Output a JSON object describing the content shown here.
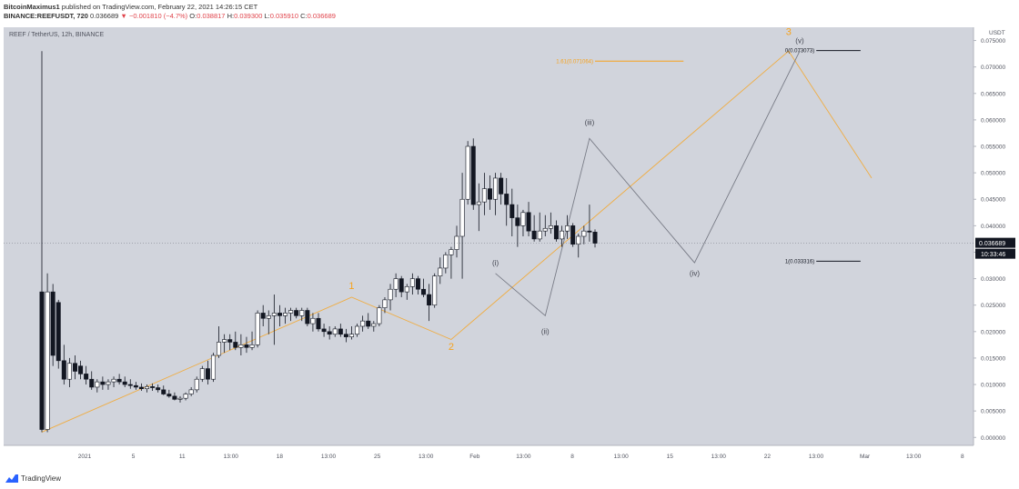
{
  "header": {
    "author": "BitcoinMaximus1",
    "published": "published on TradingView.com, February 22, 2021 14:26:15 CET",
    "symbol": "BINANCE:REEFUSDT, 720",
    "last": "0.036689",
    "change": "−0.001810 (−4.7%)",
    "o_label": "O:",
    "o": "0.038817",
    "h_label": "H:",
    "h": "0.039300",
    "l_label": "L:",
    "l": "0.035910",
    "c_label": "C:",
    "c": "0.036689"
  },
  "chart_data": {
    "type": "candlestick",
    "title": "REEF / TetherUS, 12h, BINANCE",
    "y_unit": "USDT",
    "ylim": [
      -0.0015,
      0.0775
    ],
    "y_ticks": [
      "0.075000",
      "0.070000",
      "0.065000",
      "0.060000",
      "0.055000",
      "0.050000",
      "0.045000",
      "0.040000",
      "0.035000",
      "0.030000",
      "0.025000",
      "0.020000",
      "0.015000",
      "0.010000",
      "0.005000",
      "0.000000"
    ],
    "x_tick_labels": [
      "2021",
      "5",
      "11",
      "13:00",
      "18",
      "13:00",
      "25",
      "13:00",
      "Feb",
      "13:00",
      "8",
      "13:00",
      "15",
      "13:00",
      "22",
      "13:00",
      "Mar",
      "13:00",
      "8"
    ],
    "candles": [
      [
        0.0275,
        0.073,
        0.001,
        0.0015
      ],
      [
        0.0015,
        0.031,
        0.001,
        0.0275
      ],
      [
        0.0275,
        0.029,
        0.0135,
        0.0155
      ],
      [
        0.0255,
        0.026,
        0.013,
        0.0145
      ],
      [
        0.0145,
        0.0175,
        0.01,
        0.011
      ],
      [
        0.011,
        0.015,
        0.0095,
        0.014
      ],
      [
        0.014,
        0.0155,
        0.011,
        0.0125
      ],
      [
        0.0135,
        0.0145,
        0.011,
        0.012
      ],
      [
        0.012,
        0.0135,
        0.01,
        0.011
      ],
      [
        0.011,
        0.0125,
        0.009,
        0.0095
      ],
      [
        0.0095,
        0.011,
        0.0085,
        0.0105
      ],
      [
        0.0105,
        0.0115,
        0.009,
        0.01
      ],
      [
        0.01,
        0.011,
        0.009,
        0.0105
      ],
      [
        0.0105,
        0.0115,
        0.0095,
        0.011
      ],
      [
        0.011,
        0.012,
        0.01,
        0.0105
      ],
      [
        0.0105,
        0.0115,
        0.0095,
        0.01
      ],
      [
        0.01,
        0.011,
        0.0092,
        0.0098
      ],
      [
        0.0098,
        0.0105,
        0.009,
        0.0095
      ],
      [
        0.0095,
        0.0102,
        0.0088,
        0.0092
      ],
      [
        0.0092,
        0.01,
        0.0085,
        0.0096
      ],
      [
        0.0096,
        0.0102,
        0.0088,
        0.0094
      ],
      [
        0.0094,
        0.01,
        0.0085,
        0.009
      ],
      [
        0.009,
        0.0098,
        0.008,
        0.0082
      ],
      [
        0.0082,
        0.009,
        0.0075,
        0.0078
      ],
      [
        0.0078,
        0.0085,
        0.007,
        0.0072
      ],
      [
        0.0072,
        0.0078,
        0.0066,
        0.0074
      ],
      [
        0.0074,
        0.0085,
        0.007,
        0.0082
      ],
      [
        0.0082,
        0.0095,
        0.0078,
        0.009
      ],
      [
        0.009,
        0.0115,
        0.0085,
        0.011
      ],
      [
        0.011,
        0.0135,
        0.0105,
        0.013
      ],
      [
        0.013,
        0.0145,
        0.01,
        0.011
      ],
      [
        0.011,
        0.016,
        0.0105,
        0.0155
      ],
      [
        0.0155,
        0.021,
        0.015,
        0.018
      ],
      [
        0.018,
        0.0195,
        0.016,
        0.0185
      ],
      [
        0.0185,
        0.0195,
        0.0165,
        0.018
      ],
      [
        0.018,
        0.02,
        0.0165,
        0.017
      ],
      [
        0.017,
        0.0195,
        0.0155,
        0.0175
      ],
      [
        0.0175,
        0.019,
        0.016,
        0.017
      ],
      [
        0.017,
        0.02,
        0.0165,
        0.0175
      ],
      [
        0.0175,
        0.024,
        0.017,
        0.0235
      ],
      [
        0.0235,
        0.025,
        0.021,
        0.0225
      ],
      [
        0.0225,
        0.024,
        0.0195,
        0.023
      ],
      [
        0.023,
        0.027,
        0.0175,
        0.0235
      ],
      [
        0.0235,
        0.025,
        0.021,
        0.023
      ],
      [
        0.023,
        0.0245,
        0.0215,
        0.0235
      ],
      [
        0.0235,
        0.0245,
        0.022,
        0.024
      ],
      [
        0.024,
        0.0245,
        0.0225,
        0.023
      ],
      [
        0.023,
        0.0245,
        0.022,
        0.024
      ],
      [
        0.024,
        0.0245,
        0.021,
        0.0215
      ],
      [
        0.0215,
        0.0235,
        0.02,
        0.0225
      ],
      [
        0.0225,
        0.0235,
        0.02,
        0.0205
      ],
      [
        0.0205,
        0.0215,
        0.019,
        0.02
      ],
      [
        0.02,
        0.021,
        0.0185,
        0.0195
      ],
      [
        0.0195,
        0.021,
        0.019,
        0.0205
      ],
      [
        0.0205,
        0.0215,
        0.019,
        0.0195
      ],
      [
        0.0195,
        0.0205,
        0.018,
        0.019
      ],
      [
        0.019,
        0.021,
        0.0185,
        0.0195
      ],
      [
        0.0195,
        0.0215,
        0.019,
        0.021
      ],
      [
        0.021,
        0.023,
        0.02,
        0.022
      ],
      [
        0.022,
        0.0235,
        0.0205,
        0.021
      ],
      [
        0.021,
        0.022,
        0.02,
        0.0215
      ],
      [
        0.0215,
        0.025,
        0.021,
        0.0245
      ],
      [
        0.0245,
        0.0265,
        0.0235,
        0.026
      ],
      [
        0.026,
        0.029,
        0.024,
        0.028
      ],
      [
        0.028,
        0.031,
        0.0265,
        0.03
      ],
      [
        0.03,
        0.0305,
        0.0265,
        0.0275
      ],
      [
        0.0275,
        0.029,
        0.026,
        0.0285
      ],
      [
        0.0285,
        0.031,
        0.027,
        0.03
      ],
      [
        0.03,
        0.0305,
        0.027,
        0.028
      ],
      [
        0.028,
        0.03,
        0.0265,
        0.027
      ],
      [
        0.027,
        0.029,
        0.022,
        0.025
      ],
      [
        0.025,
        0.031,
        0.0245,
        0.0305
      ],
      [
        0.0305,
        0.034,
        0.029,
        0.032
      ],
      [
        0.032,
        0.035,
        0.031,
        0.0345
      ],
      [
        0.0345,
        0.036,
        0.03,
        0.0355
      ],
      [
        0.0355,
        0.04,
        0.034,
        0.038
      ],
      [
        0.038,
        0.05,
        0.03,
        0.045
      ],
      [
        0.045,
        0.056,
        0.044,
        0.055
      ],
      [
        0.055,
        0.0565,
        0.043,
        0.044
      ],
      [
        0.044,
        0.048,
        0.039,
        0.0445
      ],
      [
        0.0445,
        0.05,
        0.042,
        0.047
      ],
      [
        0.047,
        0.0495,
        0.043,
        0.045
      ],
      [
        0.045,
        0.05,
        0.042,
        0.049
      ],
      [
        0.049,
        0.05,
        0.044,
        0.046
      ],
      [
        0.046,
        0.049,
        0.04,
        0.044
      ],
      [
        0.044,
        0.047,
        0.038,
        0.0415
      ],
      [
        0.0415,
        0.044,
        0.036,
        0.04
      ],
      [
        0.04,
        0.043,
        0.038,
        0.0425
      ],
      [
        0.0425,
        0.0445,
        0.038,
        0.039
      ],
      [
        0.039,
        0.042,
        0.037,
        0.0375
      ],
      [
        0.0375,
        0.0425,
        0.037,
        0.039
      ],
      [
        0.039,
        0.042,
        0.038,
        0.0395
      ],
      [
        0.0395,
        0.0425,
        0.0385,
        0.04
      ],
      [
        0.04,
        0.041,
        0.037,
        0.0375
      ],
      [
        0.0375,
        0.04,
        0.036,
        0.039
      ],
      [
        0.039,
        0.042,
        0.0375,
        0.04
      ],
      [
        0.04,
        0.0405,
        0.036,
        0.0365
      ],
      [
        0.0365,
        0.0385,
        0.034,
        0.038
      ],
      [
        0.038,
        0.04,
        0.0365,
        0.039
      ],
      [
        0.039,
        0.044,
        0.037,
        0.0388
      ],
      [
        0.0388,
        0.0393,
        0.0359,
        0.0367
      ]
    ],
    "wave_labels": [
      {
        "text": "1",
        "x": 56,
        "y": 0.028,
        "color": "#f7a21b"
      },
      {
        "text": "2",
        "x": 74,
        "y": 0.0165,
        "color": "#f7a21b"
      },
      {
        "text": "3",
        "x": 135,
        "y": 0.076,
        "color": "#f7a21b"
      },
      {
        "text": "(i)",
        "x": 82,
        "y": 0.0325,
        "color": "#434651"
      },
      {
        "text": "(ii)",
        "x": 91,
        "y": 0.0195,
        "color": "#434651"
      },
      {
        "text": "(iii)",
        "x": 99,
        "y": 0.059,
        "color": "#434651"
      },
      {
        "text": "(iv)",
        "x": 118,
        "y": 0.0305,
        "color": "#434651"
      },
      {
        "text": "(v)",
        "x": 137,
        "y": 0.0745,
        "color": "#434651"
      }
    ],
    "orange_path": [
      [
        0,
        0.001
      ],
      [
        56,
        0.0265
      ],
      [
        74,
        0.0185
      ],
      [
        135,
        0.073
      ],
      [
        150,
        0.049
      ]
    ],
    "gray_path": [
      [
        82,
        0.031
      ],
      [
        91,
        0.023
      ],
      [
        99,
        0.0565
      ],
      [
        118,
        0.033
      ],
      [
        137,
        0.073
      ]
    ],
    "fib_levels": [
      {
        "label": "1.61(0.071064)",
        "value": 0.0711,
        "x1": 100,
        "x2": 116,
        "color": "#f7a21b"
      },
      {
        "label": "0(0.073073)",
        "value": 0.0731,
        "x1": 140,
        "x2": 148,
        "color": "#131722"
      },
      {
        "label": "1(0.033316)",
        "value": 0.0333,
        "x1": 140,
        "x2": 148,
        "color": "#131722"
      }
    ],
    "price_label": "0.036689",
    "price_value": 0.036689,
    "countdown_label": "10:33:46",
    "colors": {
      "background": "#d1d4dc",
      "up": "#ffffff",
      "down": "#131722",
      "wick": "#131722",
      "orange": "#f7a21b",
      "gray": "#787b86"
    }
  },
  "footer": {
    "brand": "TradingView"
  }
}
